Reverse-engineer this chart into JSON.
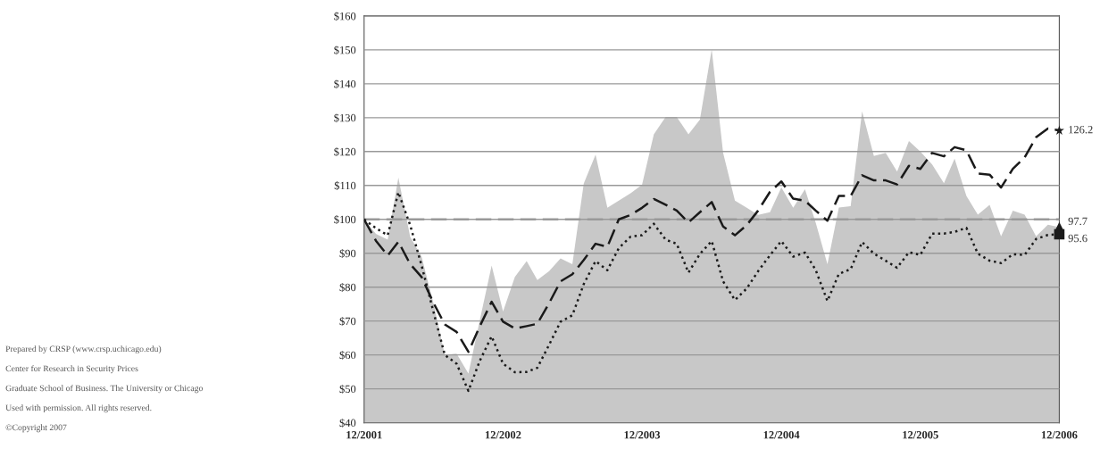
{
  "chart_data": {
    "type": "line",
    "x": [
      "2001-12",
      "2002-01",
      "2002-02",
      "2002-03",
      "2002-04",
      "2002-05",
      "2002-06",
      "2002-07",
      "2002-08",
      "2002-09",
      "2002-10",
      "2002-11",
      "2002-12",
      "2003-01",
      "2003-02",
      "2003-03",
      "2003-04",
      "2003-05",
      "2003-06",
      "2003-07",
      "2003-08",
      "2003-09",
      "2003-10",
      "2003-11",
      "2003-12",
      "2004-01",
      "2004-02",
      "2004-03",
      "2004-04",
      "2004-05",
      "2004-06",
      "2004-07",
      "2004-08",
      "2004-09",
      "2004-10",
      "2004-11",
      "2004-12",
      "2005-01",
      "2005-02",
      "2005-03",
      "2005-04",
      "2005-05",
      "2005-06",
      "2005-07",
      "2005-08",
      "2005-09",
      "2005-10",
      "2005-11",
      "2005-12",
      "2006-01",
      "2006-02",
      "2006-03",
      "2006-04",
      "2006-05",
      "2006-06",
      "2006-07",
      "2006-08",
      "2006-09",
      "2006-10",
      "2006-11",
      "2006-12"
    ],
    "series": [
      {
        "type": "area",
        "color": "#c8c8c8",
        "values": [
          100,
          95.7,
          94,
          112.3,
          94.9,
          89,
          75.3,
          60,
          60.4,
          54.5,
          70.3,
          86.4,
          72.8,
          83,
          87.7,
          82.1,
          84.7,
          88.5,
          86.8,
          110.6,
          119.1,
          103.4,
          105.5,
          107.7,
          110.2,
          125.1,
          130.2,
          130.2,
          125.1,
          129.4,
          150.2,
          119.6,
          105.5,
          103.4,
          101.3,
          102.1,
          109.4,
          103.4,
          108.9,
          99.1,
          86.8,
          103.5,
          103.9,
          131.9,
          118.7,
          119.6,
          114.1,
          123.1,
          120,
          116.2,
          110.7,
          117.9,
          106.9,
          101.4,
          104.3,
          95,
          102.6,
          101.4,
          95,
          98.4,
          97.7
        ]
      },
      {
        "color": "#1a1a1a",
        "line_style": "dashed",
        "values": [
          100,
          93.7,
          89.3,
          93.4,
          86.8,
          83,
          75.4,
          69,
          66.8,
          60.9,
          68.5,
          75.7,
          69.8,
          67.8,
          68.5,
          69.2,
          75.3,
          81.7,
          83.8,
          88,
          92.8,
          91.9,
          100,
          101.3,
          103.4,
          106,
          104.3,
          102.6,
          99.1,
          102.1,
          105.1,
          97.9,
          95.3,
          98.3,
          102.6,
          108.1,
          111.2,
          106.1,
          105.5,
          102.6,
          99.6,
          106.9,
          106.9,
          113,
          111.5,
          111.5,
          110.3,
          115.8,
          114.9,
          119.6,
          118.6,
          121.3,
          120.4,
          113.5,
          113.2,
          109.4,
          114.9,
          118.3,
          124.2,
          126.8,
          126.2
        ]
      },
      {
        "color": "#1a1a1a",
        "line_style": "dotted",
        "values": [
          100,
          97.4,
          95.3,
          108,
          98.3,
          86.4,
          72.8,
          60,
          57.4,
          49.4,
          58.3,
          65.5,
          57.4,
          54.9,
          55,
          56.2,
          63,
          69.8,
          71.7,
          80.9,
          87.7,
          85,
          91.5,
          94.9,
          95.3,
          98.7,
          94,
          92.8,
          84.3,
          89.8,
          93.6,
          81.7,
          76.2,
          79.6,
          84.7,
          89.4,
          93.6,
          89,
          90.2,
          85.1,
          75.9,
          83.9,
          85.3,
          93.3,
          89.9,
          87.8,
          85.7,
          90.3,
          89.5,
          95.8,
          95.8,
          96.3,
          97.5,
          89.9,
          87.8,
          87.1,
          89.7,
          89.5,
          94.2,
          95.4,
          95.6
        ]
      },
      {
        "type": "scatter",
        "color": "#1a1a1a",
        "marker": "triangle",
        "x": [
          "2006-12"
        ],
        "values": [
          97.7
        ],
        "value_labels": [
          "97.7"
        ]
      },
      {
        "type": "scatter",
        "color": "#1a1a1a",
        "marker": "star",
        "x": [
          "2006-12"
        ],
        "values": [
          126.2
        ],
        "value_labels": [
          "126.2"
        ]
      },
      {
        "type": "scatter",
        "color": "#1a1a1a",
        "marker": "square",
        "x": [
          "2006-12"
        ],
        "values": [
          95.6
        ],
        "value_labels": [
          "95.6"
        ]
      }
    ],
    "ref_lines": [
      {
        "axis": "y",
        "value": 100,
        "color": "#999999",
        "line_style": "dashed"
      }
    ],
    "xlim": [
      "2001-12",
      "2006-12"
    ],
    "xticks": [
      {
        "value": "2001-12",
        "label": "12/2001"
      },
      {
        "value": "2002-12",
        "label": "12/2002"
      },
      {
        "value": "2003-12",
        "label": "12/2003"
      },
      {
        "value": "2004-12",
        "label": "12/2004"
      },
      {
        "value": "2005-12",
        "label": "12/2005"
      },
      {
        "value": "2006-12",
        "label": "12/2006"
      }
    ],
    "ylim": [
      40,
      160
    ],
    "yticks": [
      {
        "value": 40,
        "label": "$40"
      },
      {
        "value": 50,
        "label": "$50"
      },
      {
        "value": 60,
        "label": "$60"
      },
      {
        "value": 70,
        "label": "$70"
      },
      {
        "value": 80,
        "label": "$80"
      },
      {
        "value": 90,
        "label": "$90"
      },
      {
        "value": 100,
        "label": "$100"
      },
      {
        "value": 110,
        "label": "$110"
      },
      {
        "value": 120,
        "label": "$120"
      },
      {
        "value": 130,
        "label": "$130"
      },
      {
        "value": 140,
        "label": "$140"
      },
      {
        "value": 150,
        "label": "$150"
      },
      {
        "value": 160,
        "label": "$160"
      }
    ],
    "grid": "y",
    "annotations": [
      "Prepared by CRSP (www.crsp.uchicago.edu)",
      "Center for Research in Security Prices",
      "Graduate School of Business. The University or Chicago",
      "Used with permission. All rights reserved.",
      "©Copyright 2007"
    ]
  }
}
